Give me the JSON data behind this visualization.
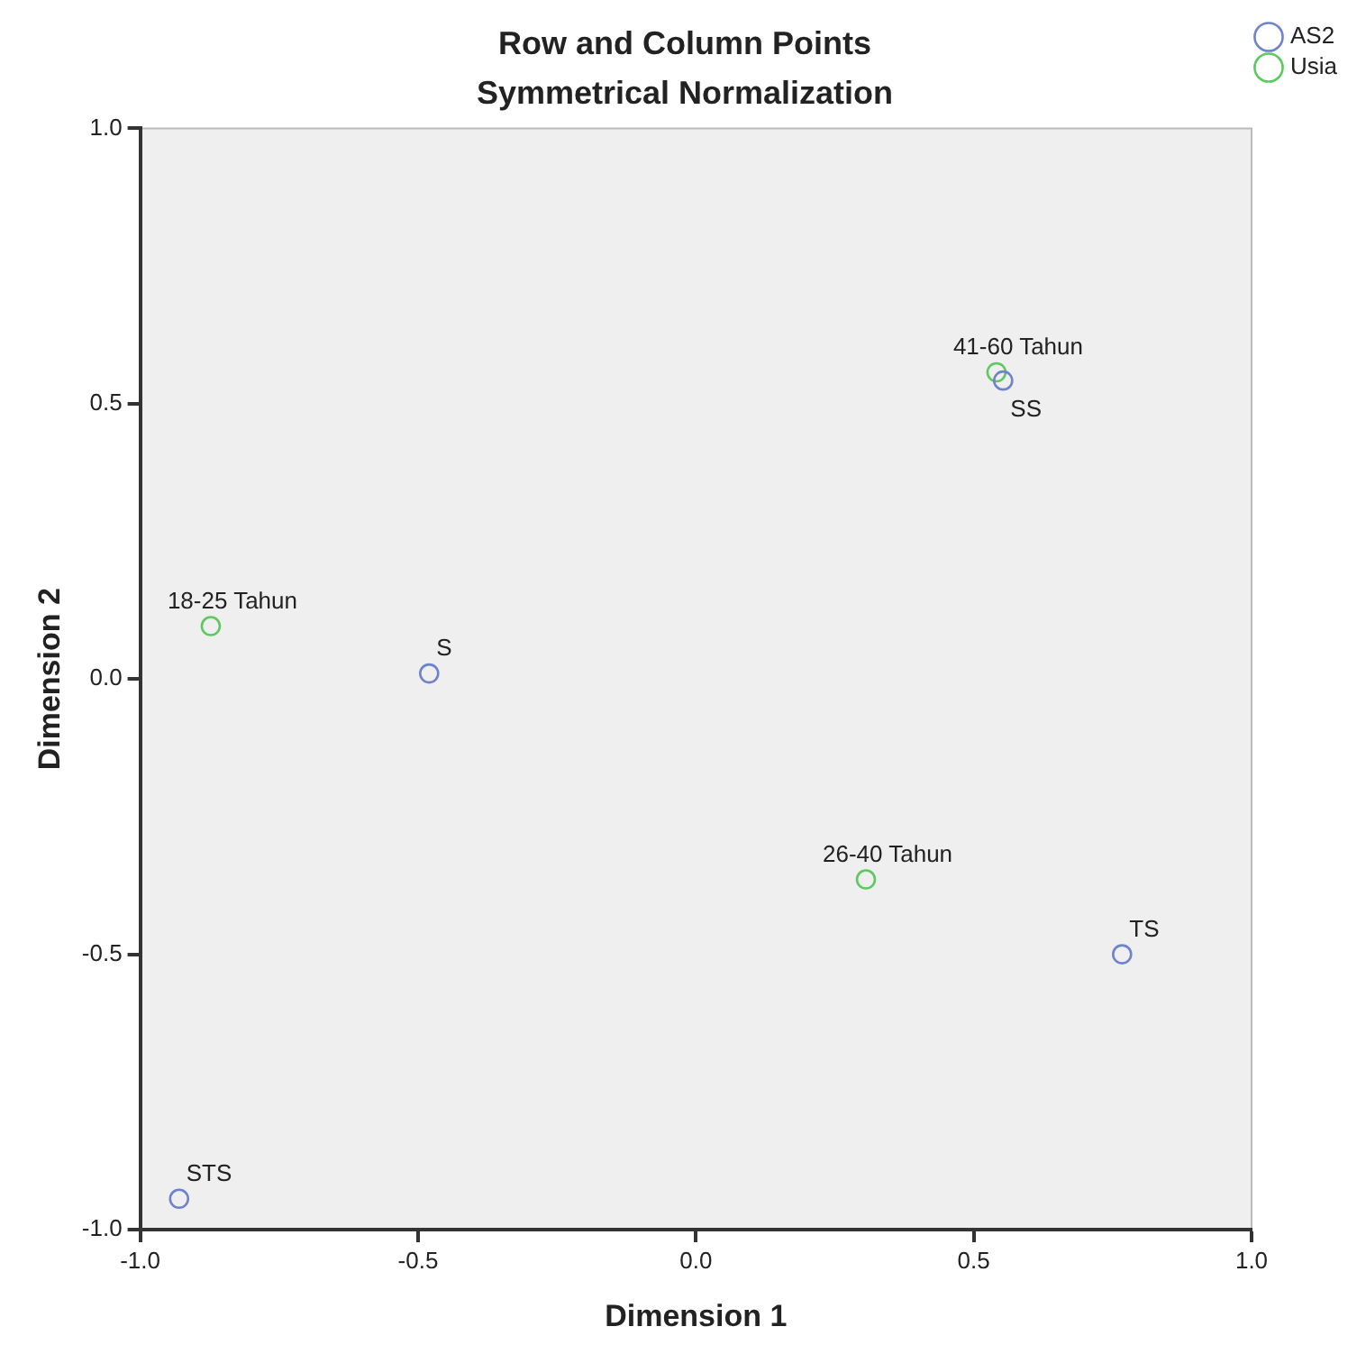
{
  "chart_data": {
    "type": "scatter",
    "title": "Row and Column Points",
    "subtitle": "Symmetrical Normalization",
    "xlabel": "Dimension 1",
    "ylabel": "Dimension 2",
    "series": [
      {
        "name": "AS2",
        "color": "#6f83cc",
        "x": [
          -0.48,
          0.553,
          0.767,
          -0.93
        ],
        "values": [
          0.01,
          0.542,
          -0.5,
          -0.944
        ]
      },
      {
        "name": "Usia",
        "color": "#5ec95e",
        "x": [
          -0.873,
          0.306,
          0.541
        ],
        "values": [
          0.096,
          -0.364,
          0.557
        ]
      }
    ],
    "annotations": [
      {
        "text": "S",
        "x": -0.48,
        "y": 0.01
      },
      {
        "text": "SS",
        "x": 0.553,
        "y": 0.542
      },
      {
        "text": "TS",
        "x": 0.767,
        "y": -0.5
      },
      {
        "text": "STS",
        "x": -0.93,
        "y": -0.944
      },
      {
        "text": "18-25 Tahun",
        "x": -0.873,
        "y": 0.096
      },
      {
        "text": "26-40 Tahun",
        "x": 0.306,
        "y": -0.364
      },
      {
        "text": "41-60 Tahun",
        "x": 0.541,
        "y": 0.557
      }
    ],
    "xlim": [
      -1,
      1
    ],
    "ylim": [
      -1,
      1
    ],
    "xticks": [
      {
        "value": -1,
        "label": "-1.0"
      },
      {
        "value": -0.5,
        "label": "-0.5"
      },
      {
        "value": 0,
        "label": "0.0"
      },
      {
        "value": 0.5,
        "label": "0.5"
      },
      {
        "value": 1,
        "label": "1.0"
      }
    ],
    "yticks": [
      {
        "value": -1,
        "label": "-1.0"
      },
      {
        "value": -0.5,
        "label": "-0.5"
      },
      {
        "value": 0,
        "label": "0.0"
      },
      {
        "value": 0.5,
        "label": "0.5"
      },
      {
        "value": 1,
        "label": "1.0"
      }
    ],
    "grid": false,
    "legend": "top right",
    "marker": "circle"
  }
}
